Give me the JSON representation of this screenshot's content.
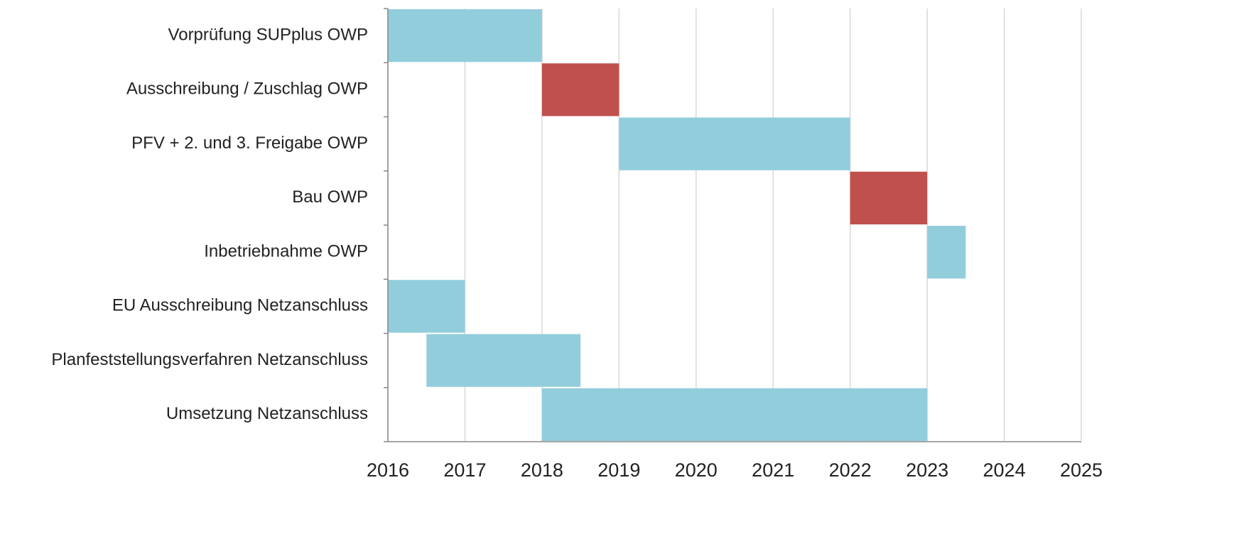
{
  "chart_data": {
    "type": "gantt",
    "categories": [
      "Vorprüfung SUPplus OWP",
      "Ausschreibung / Zuschlag OWP",
      "PFV + 2. und 3. Freigabe OWP",
      "Bau OWP",
      "Inbetriebnahme OWP",
      "EU Ausschreibung Netzanschluss",
      "Planfeststellungsverfahren Netzanschluss",
      "Umsetzung Netzanschluss"
    ],
    "start": [
      2016,
      2018,
      2019,
      2022,
      2023,
      2016,
      2016.5,
      2018
    ],
    "end": [
      2018,
      2019,
      2022,
      2023,
      2023.5,
      2017,
      2018.5,
      2023
    ],
    "colors": [
      "#92cddc",
      "#c0504d",
      "#92cddc",
      "#c0504d",
      "#92cddc",
      "#92cddc",
      "#92cddc",
      "#92cddc"
    ],
    "xlim": [
      2016,
      2025
    ],
    "xticks": [
      2016,
      2017,
      2018,
      2019,
      2020,
      2021,
      2022,
      2023,
      2024,
      2025
    ],
    "grid": true
  }
}
